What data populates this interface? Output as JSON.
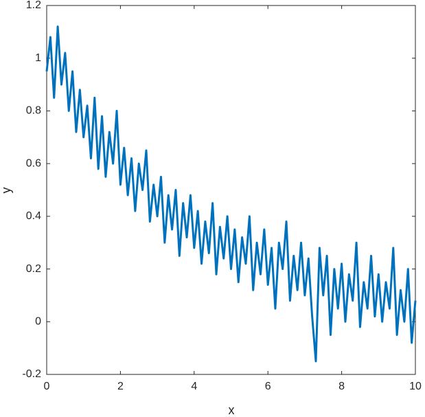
{
  "chart_data": {
    "type": "line",
    "x_label": "x",
    "y_label": "y",
    "x": [
      0,
      0.1,
      0.2,
      0.3,
      0.4,
      0.5,
      0.6,
      0.7,
      0.8,
      0.9,
      1,
      1.1,
      1.2,
      1.3,
      1.4,
      1.5,
      1.6,
      1.7,
      1.8,
      1.9,
      2,
      2.1,
      2.2,
      2.3,
      2.4,
      2.5,
      2.6,
      2.7,
      2.8,
      2.9,
      3,
      3.1,
      3.2,
      3.3,
      3.4,
      3.5,
      3.6,
      3.7,
      3.8,
      3.9,
      4,
      4.1,
      4.2,
      4.3,
      4.4,
      4.5,
      4.6,
      4.7,
      4.8,
      4.9,
      5,
      5.1,
      5.2,
      5.3,
      5.4,
      5.5,
      5.6,
      5.7,
      5.8,
      5.9,
      6,
      6.1,
      6.2,
      6.3,
      6.4,
      6.5,
      6.6,
      6.7,
      6.8,
      6.9,
      7,
      7.1,
      7.2,
      7.3,
      7.4,
      7.5,
      7.6,
      7.7,
      7.8,
      7.9,
      8,
      8.1,
      8.2,
      8.3,
      8.4,
      8.5,
      8.6,
      8.7,
      8.8,
      8.9,
      9,
      9.1,
      9.2,
      9.3,
      9.4,
      9.5,
      9.6,
      9.7,
      9.8,
      9.9,
      10
    ],
    "series": [
      {
        "color": "#0072BD",
        "values": [
          0.95,
          1.08,
          0.85,
          1.12,
          0.9,
          1.02,
          0.8,
          0.95,
          0.72,
          0.88,
          0.7,
          0.82,
          0.62,
          0.85,
          0.58,
          0.78,
          0.55,
          0.72,
          0.6,
          0.8,
          0.52,
          0.66,
          0.48,
          0.62,
          0.42,
          0.6,
          0.5,
          0.65,
          0.38,
          0.52,
          0.4,
          0.55,
          0.3,
          0.48,
          0.35,
          0.5,
          0.25,
          0.45,
          0.32,
          0.48,
          0.28,
          0.42,
          0.22,
          0.38,
          0.26,
          0.45,
          0.18,
          0.36,
          0.24,
          0.4,
          0.2,
          0.35,
          0.15,
          0.32,
          0.22,
          0.4,
          0.12,
          0.3,
          0.18,
          0.35,
          0.14,
          0.28,
          0.05,
          0.3,
          0.2,
          0.38,
          0.08,
          0.25,
          0.12,
          0.3,
          0.1,
          0.24,
          0.02,
          -0.15,
          0.28,
          0.1,
          0.25,
          -0.05,
          0.2,
          0.05,
          0.22,
          0,
          0.18,
          0.08,
          0.3,
          -0.02,
          0.15,
          0.05,
          0.25,
          0.02,
          0.18,
          0,
          0.15,
          0.05,
          0.28,
          -0.05,
          0.12,
          0,
          0.2,
          -0.08,
          0.08
        ]
      }
    ],
    "xlim": [
      0,
      10
    ],
    "xticks": [
      0,
      2,
      4,
      6,
      8,
      10
    ],
    "ylim": [
      -0.2,
      1.2
    ],
    "yticks": [
      -0.2,
      0,
      0.2,
      0.4,
      0.6,
      0.8,
      1,
      1.2
    ],
    "grid": false
  }
}
